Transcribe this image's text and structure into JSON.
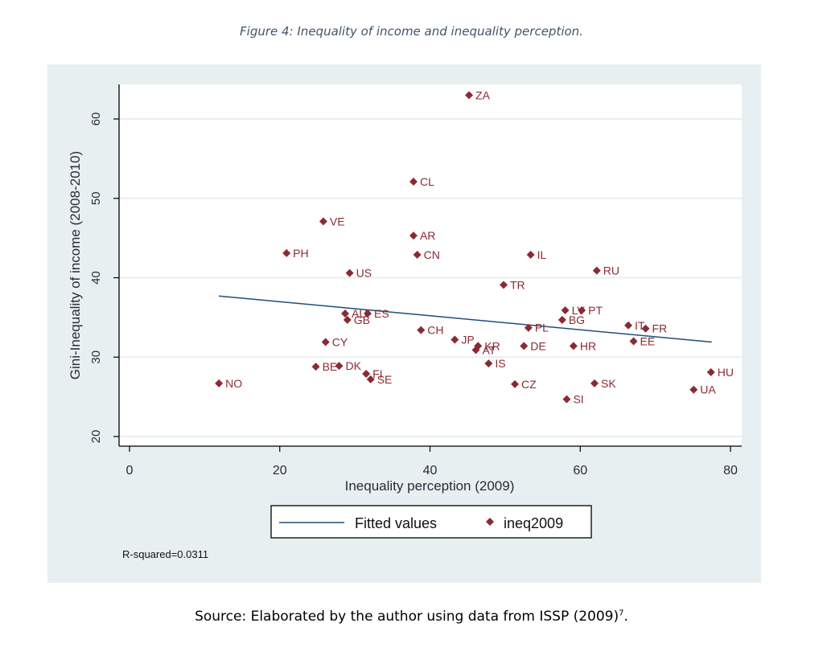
{
  "figure": {
    "title": "Figure 4: Inequality of income and inequality perception.",
    "source_text": "Source: Elaborated by the author using data from ISSP (2009)",
    "source_footnote": "7",
    "source_end": "."
  },
  "colors": {
    "panel_bg": "#e8eff1",
    "plot_bg": "#ffffff",
    "grid": "#e8eff1",
    "point": "#8b2a33",
    "label": "#8b2a33",
    "fit_line": "#1f4e79",
    "axis": "#000000"
  },
  "chart_data": {
    "type": "scatter",
    "title": "",
    "xlabel": "Inequality perception (2009)",
    "ylabel": "Gini-Inequality of income (2008-2010)",
    "xlim": [
      0,
      80
    ],
    "ylim": [
      20,
      63
    ],
    "xticks": [
      0,
      20,
      40,
      60,
      80
    ],
    "yticks": [
      20,
      30,
      40,
      50,
      60
    ],
    "grid": true,
    "legend_position": "bottom-center",
    "legend": [
      {
        "label": "Fitted values",
        "type": "line"
      },
      {
        "label": "ineq2009",
        "type": "marker"
      }
    ],
    "annotation": "R-squared=0.0311",
    "fitted_line": {
      "x": [
        11.9,
        77.5
      ],
      "y": [
        37.7,
        31.9
      ]
    },
    "points": [
      {
        "label": "ZA",
        "x": 45.2,
        "y": 63.0
      },
      {
        "label": "CL",
        "x": 37.8,
        "y": 52.1
      },
      {
        "label": "VE",
        "x": 25.8,
        "y": 47.1
      },
      {
        "label": "AR",
        "x": 37.8,
        "y": 45.3
      },
      {
        "label": "PH",
        "x": 20.9,
        "y": 43.1
      },
      {
        "label": "CN",
        "x": 38.3,
        "y": 42.9
      },
      {
        "label": "IL",
        "x": 53.4,
        "y": 42.9
      },
      {
        "label": "US",
        "x": 29.3,
        "y": 40.6
      },
      {
        "label": "RU",
        "x": 62.2,
        "y": 40.9
      },
      {
        "label": "TR",
        "x": 49.8,
        "y": 39.1
      },
      {
        "label": "AU",
        "x": 28.7,
        "y": 35.5
      },
      {
        "label": "GB",
        "x": 29.0,
        "y": 34.7
      },
      {
        "label": "ES",
        "x": 31.7,
        "y": 35.5
      },
      {
        "label": "LV",
        "x": 58.0,
        "y": 35.9
      },
      {
        "label": "PT",
        "x": 60.2,
        "y": 35.9
      },
      {
        "label": "BG",
        "x": 57.6,
        "y": 34.7
      },
      {
        "label": "IT",
        "x": 66.4,
        "y": 34.0
      },
      {
        "label": "FR",
        "x": 68.7,
        "y": 33.6
      },
      {
        "label": "PL",
        "x": 53.1,
        "y": 33.7
      },
      {
        "label": "CH",
        "x": 38.8,
        "y": 33.4
      },
      {
        "label": "EE",
        "x": 67.1,
        "y": 32.0
      },
      {
        "label": "JP",
        "x": 43.3,
        "y": 32.2
      },
      {
        "label": "KR",
        "x": 46.4,
        "y": 31.4
      },
      {
        "label": "AT",
        "x": 46.1,
        "y": 30.9
      },
      {
        "label": "DE",
        "x": 52.5,
        "y": 31.4
      },
      {
        "label": "HR",
        "x": 59.1,
        "y": 31.4
      },
      {
        "label": "CY",
        "x": 26.1,
        "y": 31.9
      },
      {
        "label": "IS",
        "x": 47.8,
        "y": 29.2
      },
      {
        "label": "BE",
        "x": 24.8,
        "y": 28.8
      },
      {
        "label": "DK",
        "x": 27.9,
        "y": 28.9
      },
      {
        "label": "FI",
        "x": 31.5,
        "y": 27.9
      },
      {
        "label": "SE",
        "x": 32.1,
        "y": 27.2
      },
      {
        "label": "NO",
        "x": 11.9,
        "y": 26.7
      },
      {
        "label": "CZ",
        "x": 51.3,
        "y": 26.6
      },
      {
        "label": "SK",
        "x": 61.9,
        "y": 26.7
      },
      {
        "label": "SI",
        "x": 58.2,
        "y": 24.7
      },
      {
        "label": "UA",
        "x": 75.1,
        "y": 25.9
      },
      {
        "label": "HU",
        "x": 77.4,
        "y": 28.1
      }
    ]
  }
}
